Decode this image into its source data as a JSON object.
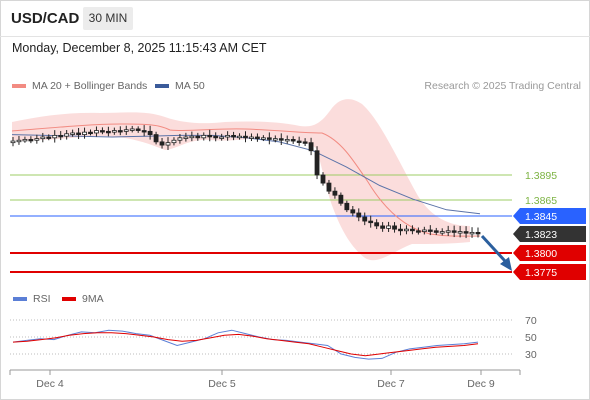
{
  "header": {
    "symbol": "USD/CAD",
    "timeframe": "30 MIN"
  },
  "timestamp": "Monday, December 8, 2025 11:15:43 AM CET",
  "legend": {
    "items": [
      {
        "label": "MA 20 + Bollinger Bands",
        "color": "#f28b82"
      },
      {
        "label": "MA 50",
        "color": "#3b5b9a"
      }
    ],
    "credit": "Research © 2025 Trading Central"
  },
  "levels": [
    {
      "value": "1.3895",
      "kind": "resistance",
      "color": "#7cb342"
    },
    {
      "value": "1.3865",
      "kind": "resistance",
      "color": "#7cb342"
    },
    {
      "value": "1.3845",
      "kind": "pivot",
      "color": "#2962ff"
    },
    {
      "value": "1.3823",
      "kind": "last-price",
      "color": "#333333"
    },
    {
      "value": "1.3800",
      "kind": "support",
      "color": "#e00000"
    },
    {
      "value": "1.3775",
      "kind": "support",
      "color": "#e00000"
    }
  ],
  "rsi_panel": {
    "legend": [
      {
        "label": "RSI",
        "color": "#5b7fd6"
      },
      {
        "label": "9MA",
        "color": "#e00000"
      }
    ],
    "ticks": [
      "70",
      "50",
      "30"
    ]
  },
  "x_axis": {
    "labels": [
      "Dec 4",
      "Dec 5",
      "Dec 7",
      "Dec 9"
    ]
  },
  "chart_data": {
    "type": "candlestick",
    "title": "USD/CAD",
    "timeframe": "30 MIN",
    "x_labels": [
      "Dec 4",
      "Dec 5",
      "Dec 7",
      "Dec 9"
    ],
    "price_levels": [
      1.3895,
      1.3865,
      1.3845,
      1.3823,
      1.38,
      1.3775
    ],
    "last_price": 1.3823,
    "close_series": [
      1.3937,
      1.3938,
      1.3939,
      1.3938,
      1.394,
      1.3942,
      1.3941,
      1.3944,
      1.3943,
      1.3946,
      1.3947,
      1.3945,
      1.3948,
      1.3947,
      1.395,
      1.3949,
      1.3948,
      1.395,
      1.3949,
      1.3951,
      1.3952,
      1.395,
      1.3949,
      1.3945,
      1.3936,
      1.3932,
      1.3935,
      1.3938,
      1.3941,
      1.3942,
      1.3943,
      1.3941,
      1.3944,
      1.3943,
      1.3941,
      1.3942,
      1.3944,
      1.3942,
      1.3943,
      1.3941,
      1.3942,
      1.394,
      1.3941,
      1.3939,
      1.394,
      1.3938,
      1.3939,
      1.3937,
      1.3936,
      1.3935,
      1.3925,
      1.3895,
      1.3885,
      1.3875,
      1.387,
      1.386,
      1.3852,
      1.3848,
      1.3843,
      1.3838,
      1.3836,
      1.3832,
      1.3829,
      1.3832,
      1.3828,
      1.3826,
      1.3828,
      1.3826,
      1.3825,
      1.3827,
      1.3826,
      1.3824,
      1.3825,
      1.3826,
      1.3824,
      1.3825,
      1.3823,
      1.3824,
      1.3823
    ],
    "ma50": [
      1.3945,
      1.3944,
      1.3943,
      1.3942,
      1.3943,
      1.3944,
      1.3944,
      1.3941,
      1.3936,
      1.3925,
      1.3905,
      1.3882,
      1.3865,
      1.3852,
      1.3847
    ],
    "rsi_ticks": [
      70,
      50,
      30
    ],
    "rsi": [
      44,
      46,
      48,
      47,
      52,
      56,
      55,
      58,
      57,
      54,
      52,
      46,
      40,
      44,
      48,
      55,
      58,
      54,
      50,
      47,
      46,
      44,
      42,
      40,
      30,
      26,
      24,
      25,
      32,
      36,
      38,
      40,
      41,
      42,
      44
    ],
    "rsi_ma9": [
      44,
      45,
      47,
      49,
      52,
      54,
      55,
      55,
      54,
      52,
      50,
      47,
      45,
      46,
      49,
      52,
      53,
      51,
      48,
      46,
      44,
      42,
      38,
      34,
      30,
      28,
      30,
      32,
      34,
      36,
      38,
      39,
      40,
      42
    ],
    "forecast": "down"
  }
}
